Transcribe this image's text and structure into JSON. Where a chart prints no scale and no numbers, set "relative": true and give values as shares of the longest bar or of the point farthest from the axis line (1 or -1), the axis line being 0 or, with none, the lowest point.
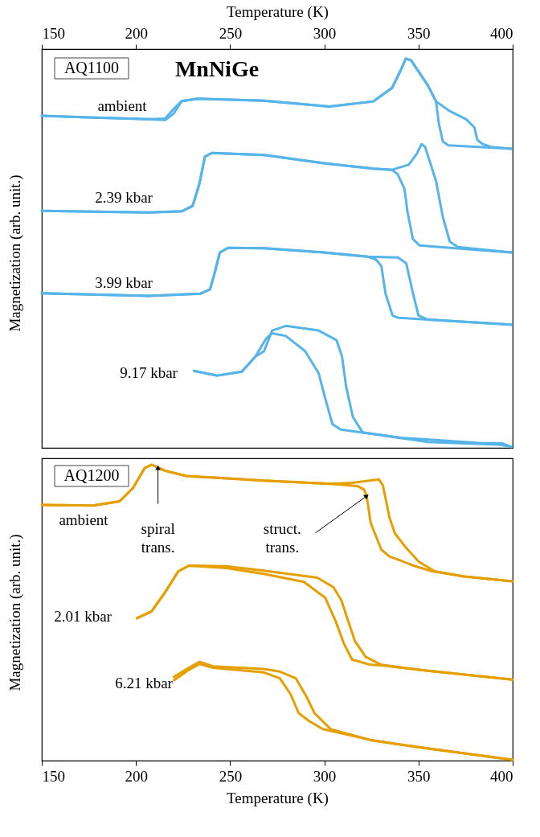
{
  "chart_data": [
    {
      "type": "line",
      "title": "MnNiGe",
      "xlabel": "Temperature (K)",
      "xlim": [
        150,
        400
      ],
      "xticks": [
        150,
        200,
        250,
        300,
        350,
        400
      ],
      "ylabel": "Magnetization (arb. unit.)",
      "relative": true,
      "annotations": [
        "AQ1100",
        "ambient",
        "2.39 kbar",
        "3.99 kbar",
        "9.17 kbar"
      ],
      "series": [
        {
          "color": "#56b4e9",
          "x": [
            150,
            174.9,
            206.8,
            215.5,
            219.9,
            224.3,
            232.8,
            268,
            302.7,
            326,
            336,
            341,
            343.2,
            346,
            354.9,
            359.3,
            360.8,
            362.9,
            365.8,
            399.3
          ],
          "values": [
            0.853,
            0.849,
            0.844,
            0.842,
            0.858,
            0.891,
            0.897,
            0.892,
            0.877,
            0.89,
            0.925,
            0.975,
            1.0,
            0.996,
            0.932,
            0.89,
            0.833,
            0.787,
            0.777,
            0.768
          ]
        },
        {
          "color": "#56b4e9",
          "x": [
            150,
            174.9,
            206.8,
            215.5,
            219.9,
            224.3,
            232.8,
            268,
            302.7,
            326,
            336,
            341,
            343.2,
            346,
            354.9,
            359.3,
            366.6,
            375.3,
            379.7,
            381.2,
            384.1,
            388.4,
            399.3
          ],
          "values": [
            0.853,
            0.849,
            0.844,
            0.846,
            0.87,
            0.891,
            0.897,
            0.892,
            0.877,
            0.89,
            0.925,
            0.975,
            1.0,
            0.996,
            0.932,
            0.89,
            0.865,
            0.844,
            0.823,
            0.791,
            0.78,
            0.773,
            0.768
          ]
        },
        {
          "color": "#56b4e9",
          "x": [
            150,
            206.8,
            224.3,
            230.1,
            233.7,
            236.6,
            240.2,
            268,
            299.8,
            326,
            336,
            339,
            342.6,
            344.1,
            347,
            350.6,
            369.5,
            399.3
          ],
          "values": [
            0.608,
            0.604,
            0.607,
            0.621,
            0.678,
            0.748,
            0.757,
            0.752,
            0.731,
            0.717,
            0.714,
            0.702,
            0.664,
            0.607,
            0.536,
            0.519,
            0.512,
            0.501
          ]
        },
        {
          "color": "#56b4e9",
          "x": [
            150,
            206.8,
            224.3,
            230.1,
            233.7,
            236.6,
            240.2,
            268,
            299.8,
            326,
            336,
            344.8,
            349.1,
            351.6,
            353.5,
            359.3,
            362.9,
            366.6,
            370.9,
            399.3
          ],
          "values": [
            0.608,
            0.604,
            0.607,
            0.621,
            0.678,
            0.748,
            0.757,
            0.752,
            0.731,
            0.717,
            0.714,
            0.727,
            0.755,
            0.78,
            0.773,
            0.685,
            0.593,
            0.529,
            0.515,
            0.501
          ]
        },
        {
          "color": "#56b4e9",
          "x": [
            150,
            206.8,
            234.3,
            239.3,
            241.6,
            244.5,
            248.9,
            268,
            299.8,
            323.1,
            327.4,
            330.3,
            332.5,
            336.2,
            339.1,
            399.3
          ],
          "values": [
            0.396,
            0.389,
            0.395,
            0.406,
            0.445,
            0.501,
            0.513,
            0.512,
            0.501,
            0.49,
            0.483,
            0.466,
            0.395,
            0.339,
            0.333,
            0.315
          ]
        },
        {
          "color": "#56b4e9",
          "x": [
            150,
            206.8,
            234.3,
            239.3,
            241.6,
            244.5,
            248.9,
            268,
            299.8,
            323.1,
            339.1,
            343.5,
            347.1,
            350,
            355,
            399.3
          ],
          "values": [
            0.396,
            0.389,
            0.395,
            0.406,
            0.445,
            0.501,
            0.513,
            0.512,
            0.501,
            0.49,
            0.488,
            0.473,
            0.395,
            0.339,
            0.328,
            0.315
          ]
        },
        {
          "color": "#56b4e9",
          "x": [
            230.8,
            243.1,
            256.2,
            263.4,
            269.2,
            272.3,
            279.6,
            289.8,
            297,
            300,
            304.3,
            308.7,
            340.6,
            384.1,
            394.3,
            399.3
          ],
          "values": [
            0.196,
            0.184,
            0.194,
            0.233,
            0.28,
            0.293,
            0.286,
            0.247,
            0.19,
            0.134,
            0.059,
            0.045,
            0.024,
            0.01,
            0.01,
            0.0
          ]
        },
        {
          "color": "#56b4e9",
          "x": [
            230.8,
            243.1,
            256.2,
            263.4,
            268,
            272.3,
            279.6,
            297,
            306.5,
            309.4,
            311.6,
            315.2,
            320.3,
            355,
            392.8,
            399.3
          ],
          "values": [
            0.196,
            0.184,
            0.194,
            0.233,
            0.247,
            0.3,
            0.312,
            0.3,
            0.275,
            0.233,
            0.155,
            0.077,
            0.038,
            0.013,
            0.006,
            0.001
          ]
        }
      ]
    },
    {
      "type": "line",
      "xlabel": "Temperature (K)",
      "xlim": [
        150,
        400
      ],
      "xticks": [
        150,
        200,
        250,
        300,
        350,
        400
      ],
      "ylabel": "Magnetization (arb. unit.)",
      "relative": true,
      "annotations": [
        "AQ1200",
        "ambient",
        {
          "text": "spiral\ntrans.",
          "x": 211.7,
          "y": 0.99
        },
        {
          "text": "struct.\ntrans.",
          "x": 322.5,
          "y": 0.894
        },
        "2.01 kbar",
        "6.21 kbar"
      ],
      "series": [
        {
          "color": "#e69f00",
          "x": [
            150.1,
            177.1,
            191.3,
            198.4,
            204.7,
            208.3,
            215.4,
            226.7,
            267.9,
            303.4,
            317.5,
            321.1,
            322.5,
            324.6,
            330.3,
            334.6,
            340.2,
            347.3,
            357.3,
            374.3,
            399.9
          ],
          "values": [
            0.864,
            0.862,
            0.876,
            0.921,
            0.989,
            1.0,
            0.98,
            0.962,
            0.946,
            0.935,
            0.928,
            0.916,
            0.894,
            0.803,
            0.712,
            0.689,
            0.676,
            0.658,
            0.639,
            0.621,
            0.605
          ]
        },
        {
          "color": "#e69f00",
          "x": [
            150.1,
            177.1,
            191.3,
            198.4,
            204.7,
            208.3,
            215.4,
            226.7,
            267.9,
            303.4,
            314.8,
            329,
            331.1,
            334.6,
            337.5,
            343.1,
            350.2,
            358.7,
            374.3,
            399.9
          ],
          "values": [
            0.864,
            0.862,
            0.876,
            0.921,
            0.989,
            1.0,
            0.98,
            0.962,
            0.946,
            0.935,
            0.939,
            0.95,
            0.93,
            0.821,
            0.767,
            0.721,
            0.671,
            0.639,
            0.621,
            0.605
          ]
        },
        {
          "color": "#e69f00",
          "x": [
            200.5,
            208.3,
            215.4,
            222.5,
            228.1,
            248,
            267.9,
            296.3,
            304.8,
            309.1,
            311.9,
            316.2,
            321.9,
            330.3,
            353,
            399.9
          ],
          "values": [
            0.48,
            0.503,
            0.567,
            0.639,
            0.658,
            0.656,
            0.641,
            0.617,
            0.585,
            0.54,
            0.485,
            0.403,
            0.349,
            0.322,
            0.303,
            0.272
          ]
        },
        {
          "color": "#e69f00",
          "x": [
            200.5,
            208.3,
            215.4,
            222.5,
            228.1,
            248,
            267.9,
            289.2,
            300.5,
            306.2,
            310.4,
            314.7,
            324.6,
            330.3,
            353,
            399.9
          ],
          "values": [
            0.48,
            0.503,
            0.567,
            0.639,
            0.658,
            0.65,
            0.63,
            0.603,
            0.549,
            0.467,
            0.394,
            0.34,
            0.322,
            0.32,
            0.303,
            0.272
          ]
        },
        {
          "color": "#e69f00",
          "x": [
            220.2,
            228.1,
            233.8,
            240.9,
            267.9,
            276.4,
            284.9,
            290.6,
            294.8,
            303.4,
            324.6,
            353,
            399.9
          ],
          "values": [
            0.281,
            0.312,
            0.332,
            0.317,
            0.308,
            0.299,
            0.276,
            0.213,
            0.158,
            0.104,
            0.067,
            0.04,
            0.0
          ]
        },
        {
          "color": "#e69f00",
          "x": [
            220.2,
            228.1,
            233.8,
            240.9,
            267.9,
            276.4,
            282.1,
            286.4,
            292.1,
            299.2,
            324.6,
            353,
            399.9
          ],
          "values": [
            0.27,
            0.305,
            0.325,
            0.312,
            0.296,
            0.276,
            0.222,
            0.158,
            0.131,
            0.104,
            0.067,
            0.04,
            0.0
          ]
        }
      ]
    }
  ]
}
